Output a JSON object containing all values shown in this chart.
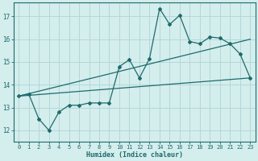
{
  "xlabel": "Humidex (Indice chaleur)",
  "bg_color": "#d4eded",
  "grid_color": "#afd4d4",
  "line_color": "#1e6b6b",
  "xlim": [
    -0.5,
    23.5
  ],
  "ylim": [
    11.5,
    17.6
  ],
  "xticks": [
    0,
    1,
    2,
    3,
    4,
    5,
    6,
    7,
    8,
    9,
    10,
    11,
    12,
    13,
    14,
    15,
    16,
    17,
    18,
    19,
    20,
    21,
    22,
    23
  ],
  "yticks": [
    12,
    13,
    14,
    15,
    16,
    17
  ],
  "line1_x": [
    0,
    1,
    2,
    3,
    4,
    5,
    6,
    7,
    8,
    9,
    10,
    11,
    12,
    13,
    14,
    15,
    16,
    17,
    18,
    19,
    20,
    21,
    22,
    23
  ],
  "line1_y": [
    13.5,
    13.6,
    12.5,
    12.0,
    12.8,
    13.1,
    13.1,
    13.2,
    13.2,
    13.2,
    14.8,
    15.1,
    14.3,
    15.15,
    17.35,
    16.65,
    17.05,
    15.9,
    15.8,
    16.1,
    16.05,
    15.8,
    15.35,
    14.3
  ],
  "line2_x": [
    0,
    23
  ],
  "line2_y": [
    13.5,
    16.0
  ],
  "line3_x": [
    0,
    23
  ],
  "line3_y": [
    13.5,
    14.3
  ],
  "xlabel_fontsize": 6.0,
  "tick_fontsize": 5.0
}
